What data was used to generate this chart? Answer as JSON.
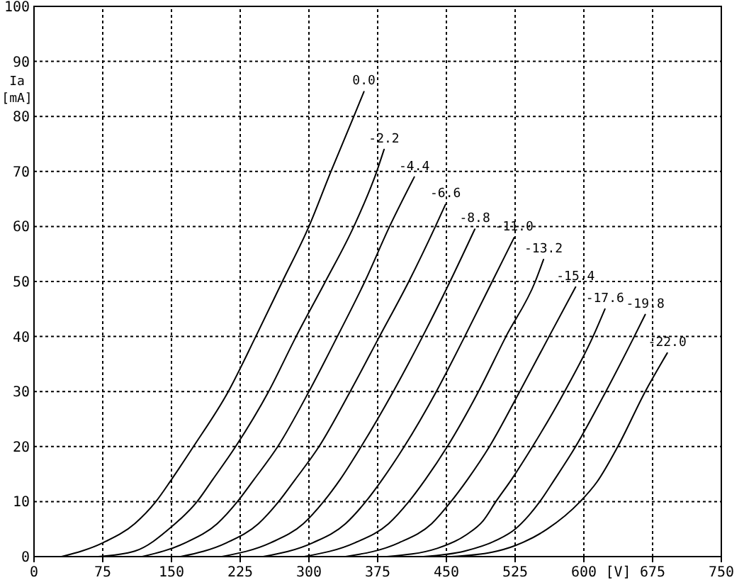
{
  "chart_data": {
    "type": "line",
    "xlabel": "[V]",
    "ylabel": "Ia [mA]",
    "xlim": [
      0,
      750
    ],
    "ylim": [
      0,
      100
    ],
    "xticks": [
      0,
      75,
      150,
      225,
      300,
      375,
      450,
      525,
      600,
      675,
      750
    ],
    "yticks": [
      0,
      10,
      20,
      30,
      40,
      50,
      60,
      70,
      80,
      90,
      100
    ],
    "grid": true,
    "series": [
      {
        "name": "0.0",
        "color": "#000000",
        "x": [
          30,
          75,
          110,
          133,
          150,
          174,
          212,
          242,
          271,
          300,
          324,
          349,
          360
        ],
        "values": [
          0,
          2.5,
          6,
          10,
          14,
          20,
          30,
          40,
          50,
          60,
          70,
          80,
          84.5
        ]
      },
      {
        "name": "-2.2",
        "color": "#000000",
        "x": [
          70,
          110,
          150,
          178,
          195,
          220,
          256,
          286,
          318,
          349,
          374,
          382
        ],
        "values": [
          0,
          1,
          5.4,
          10,
          14,
          20,
          30,
          40,
          50,
          60,
          70,
          74
        ]
      },
      {
        "name": "-4.4",
        "color": "#000000",
        "x": [
          118,
          165,
          200,
          222,
          240,
          266,
          300,
          331,
          361,
          388,
          415
        ],
        "values": [
          0,
          2.5,
          6,
          10,
          14,
          20,
          30,
          40,
          50,
          60,
          69
        ]
      },
      {
        "name": "-6.6",
        "color": "#000000",
        "x": [
          160,
          210,
          245,
          267,
          285,
          311,
          345,
          377,
          409,
          438,
          449
        ],
        "values": [
          0,
          2.5,
          6,
          10,
          14,
          20,
          30,
          40,
          50,
          60,
          64
        ]
      },
      {
        "name": "-8.8",
        "color": "#000000",
        "x": [
          205,
          258,
          294,
          316,
          334,
          357,
          392,
          424,
          454,
          481
        ],
        "values": [
          0,
          2.5,
          6,
          10,
          14,
          20,
          30,
          40,
          50,
          59.5
        ]
      },
      {
        "name": "-11.0",
        "color": "#000000",
        "x": [
          250,
          304,
          340,
          362,
          380,
          404,
          439,
          470,
          500,
          524
        ],
        "values": [
          0,
          2.5,
          6,
          10,
          14,
          20,
          30,
          40,
          50,
          58
        ]
      },
      {
        "name": "-13.2",
        "color": "#000000",
        "x": [
          295,
          350,
          387,
          409,
          427,
          451,
          485,
          515,
          547,
          556
        ],
        "values": [
          0,
          2.5,
          6,
          10,
          14,
          20,
          30,
          40,
          50,
          54
        ]
      },
      {
        "name": "-15.4",
        "color": "#000000",
        "x": [
          340,
          398,
          434,
          455,
          473,
          497,
          530,
          562,
          591
        ],
        "values": [
          0,
          2.5,
          6,
          10,
          14,
          20,
          30,
          40,
          49
        ]
      },
      {
        "name": "-17.6",
        "color": "#000000",
        "x": [
          385,
          440,
          472,
          490,
          504,
          521,
          544,
          579,
          610,
          623
        ],
        "values": [
          0,
          1.5,
          4,
          6.5,
          10,
          14,
          20,
          30,
          40,
          45
        ]
      },
      {
        "name": "-19.8",
        "color": "#000000",
        "x": [
          425,
          470,
          505,
          525,
          540,
          552,
          568,
          591,
          624,
          655,
          667
        ],
        "values": [
          0,
          1,
          3,
          5,
          7.5,
          10,
          14,
          20,
          30,
          40,
          44
        ]
      },
      {
        "name": "-22.0",
        "color": "#000000",
        "x": [
          455,
          500,
          525,
          560,
          596,
          614,
          637,
          667,
          691
        ],
        "values": [
          0,
          0.8,
          2,
          5,
          10,
          13.5,
          20,
          30,
          37
        ]
      }
    ]
  }
}
